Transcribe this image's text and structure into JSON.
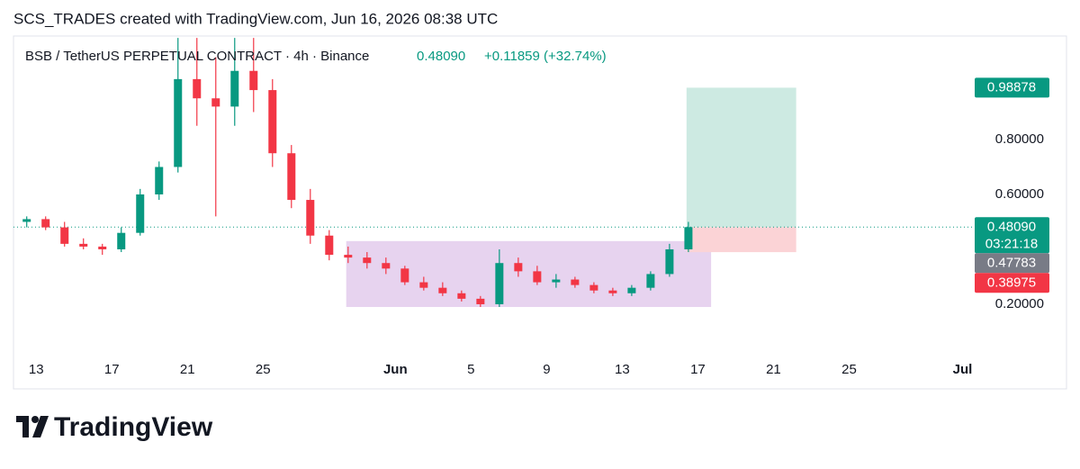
{
  "header": {
    "text": "SCS_TRADES created with TradingView.com, Jun 16, 2026 08:38 UTC"
  },
  "chart_data": {
    "type": "candlestick",
    "symbol": "BSB / TetherUS PERPETUAL CONTRACT · 4h · Binance",
    "last": "0.48090",
    "change": "+0.11859 (+32.74%)",
    "up_color": "#089981",
    "down_color": "#f23645",
    "x": [
      12.5,
      13.5,
      14.5,
      15.5,
      16.5,
      17.5,
      18.5,
      19.5,
      20.5,
      21.5,
      22.5,
      23.5,
      24.5,
      25.5,
      26.5,
      27.5,
      28.5,
      29.5,
      30.5,
      31.5,
      32.5,
      33.5,
      34.5,
      35.5,
      36.5,
      37.5,
      38.5,
      39.5,
      40.5,
      41.5,
      42.5,
      43.5,
      44.5,
      45.5,
      46.5,
      47.5
    ],
    "open": [
      0.5,
      0.51,
      0.48,
      0.42,
      0.41,
      0.4,
      0.46,
      0.6,
      0.7,
      1.02,
      0.95,
      0.92,
      1.05,
      0.98,
      0.75,
      0.58,
      0.45,
      0.38,
      0.37,
      0.35,
      0.33,
      0.28,
      0.26,
      0.24,
      0.22,
      0.2,
      0.35,
      0.32,
      0.28,
      0.29,
      0.27,
      0.25,
      0.24,
      0.26,
      0.31,
      0.4
    ],
    "high": [
      0.52,
      0.52,
      0.5,
      0.44,
      0.42,
      0.48,
      0.62,
      0.72,
      1.17,
      1.17,
      1.1,
      1.17,
      1.17,
      1.02,
      0.78,
      0.62,
      0.47,
      0.41,
      0.39,
      0.37,
      0.34,
      0.3,
      0.28,
      0.25,
      0.23,
      0.4,
      0.37,
      0.34,
      0.31,
      0.3,
      0.28,
      0.26,
      0.27,
      0.32,
      0.42,
      0.5
    ],
    "low": [
      0.48,
      0.47,
      0.41,
      0.4,
      0.38,
      0.39,
      0.45,
      0.58,
      0.68,
      0.85,
      0.52,
      0.85,
      0.9,
      0.7,
      0.55,
      0.42,
      0.36,
      0.35,
      0.33,
      0.31,
      0.27,
      0.25,
      0.23,
      0.21,
      0.19,
      0.19,
      0.3,
      0.27,
      0.26,
      0.26,
      0.24,
      0.23,
      0.23,
      0.25,
      0.3,
      0.39
    ],
    "close": [
      0.51,
      0.48,
      0.42,
      0.41,
      0.4,
      0.46,
      0.6,
      0.7,
      1.02,
      0.95,
      0.92,
      1.05,
      0.98,
      0.75,
      0.58,
      0.45,
      0.38,
      0.37,
      0.35,
      0.33,
      0.28,
      0.26,
      0.24,
      0.22,
      0.2,
      0.35,
      0.32,
      0.28,
      0.29,
      0.27,
      0.25,
      0.24,
      0.26,
      0.31,
      0.4,
      0.4809
    ],
    "xlim": [
      11.8,
      62.5
    ],
    "xticks": [
      {
        "value": 13,
        "label": "13"
      },
      {
        "value": 17,
        "label": "17"
      },
      {
        "value": 21,
        "label": "21"
      },
      {
        "value": 25,
        "label": "25"
      },
      {
        "value": 32,
        "label": "Jun"
      },
      {
        "value": 36,
        "label": "5"
      },
      {
        "value": 40,
        "label": "9"
      },
      {
        "value": 44,
        "label": "13"
      },
      {
        "value": 48,
        "label": "17"
      },
      {
        "value": 52,
        "label": "21"
      },
      {
        "value": 56,
        "label": "25"
      },
      {
        "value": 62,
        "label": "Jul"
      }
    ],
    "ylim": [
      0.013,
      1.177
    ],
    "yticks": [
      {
        "value": 0.2,
        "label": "0.20000"
      },
      {
        "value": 0.6,
        "label": "0.60000"
      },
      {
        "value": 0.8,
        "label": "0.80000"
      }
    ],
    "range_box": {
      "x": [
        29.4,
        48.7
      ],
      "y": [
        0.19,
        0.43
      ],
      "color": "#e7d3ef"
    },
    "position": {
      "x": [
        47.4,
        53.2
      ],
      "entry": 0.4809,
      "target": 0.98878,
      "stop": 0.38975,
      "target_color": "#cdeae2",
      "stop_color": "#fbd3d6"
    },
    "price_labels": [
      {
        "value": 0.98878,
        "label": "0.98878",
        "color": "#089981"
      },
      {
        "value": 0.4809,
        "label": "0.48090",
        "sublabel": "03:21:18",
        "color": "#089981"
      },
      {
        "value": 0.47783,
        "label": "0.47783",
        "color": "#787b86"
      },
      {
        "value": 0.38975,
        "label": "0.38975",
        "color": "#f23645"
      }
    ]
  },
  "footer": {
    "logo": "TradingView"
  }
}
